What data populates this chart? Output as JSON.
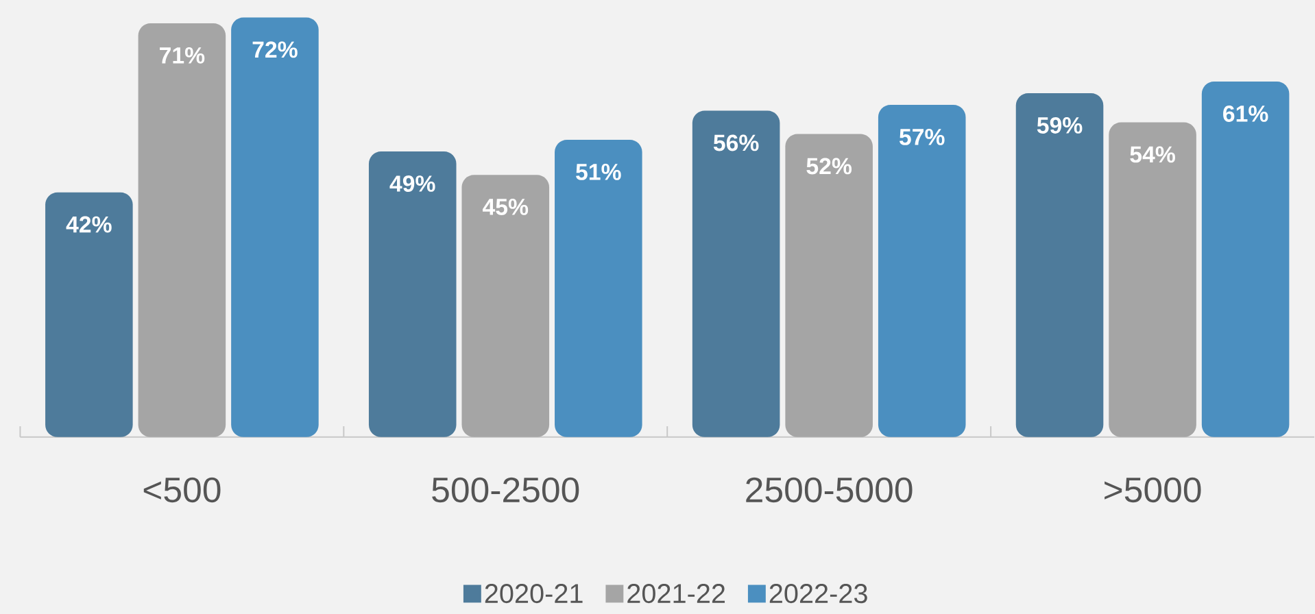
{
  "chart_data": {
    "type": "bar",
    "categories": [
      "<500",
      "500-2500",
      "2500-5000",
      ">5000"
    ],
    "series": [
      {
        "name": "2020-21",
        "color": "#4e7b9b",
        "values": [
          42,
          49,
          56,
          59
        ],
        "value_labels": [
          "42%",
          "49%",
          "56%",
          "59%"
        ]
      },
      {
        "name": "2021-22",
        "color": "#a5a5a5",
        "values": [
          71,
          45,
          52,
          54
        ],
        "value_labels": [
          "71%",
          "45%",
          "52%",
          "54%"
        ]
      },
      {
        "name": "2022-23",
        "color": "#4b8fc0",
        "values": [
          72,
          51,
          57,
          61
        ],
        "value_labels": [
          "72%",
          "51%",
          "57%",
          "61%"
        ]
      }
    ],
    "ylim": [
      0,
      75
    ],
    "legend": "bottom",
    "grid": false
  }
}
